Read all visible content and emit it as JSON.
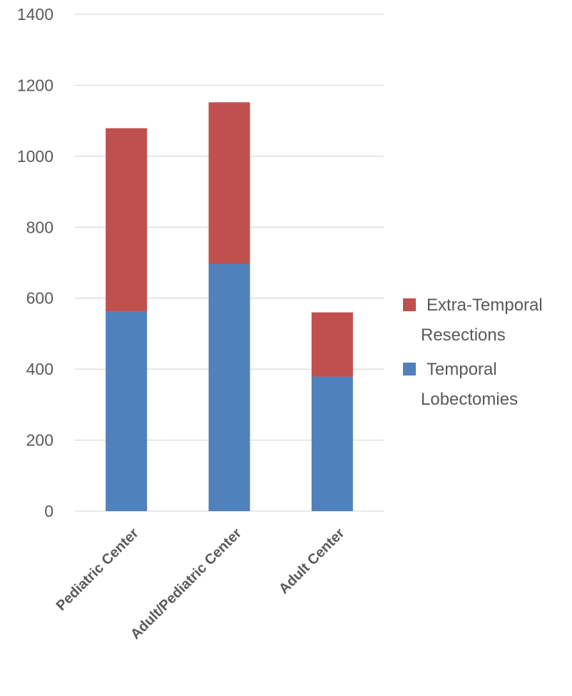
{
  "chart_data": {
    "type": "bar",
    "stacked": true,
    "categories": [
      "Pediatric Center",
      "Adult/Pediatric Center",
      "Adult Center"
    ],
    "series": [
      {
        "name": "Temporal Lobectomies",
        "values": [
          562,
          697,
          379
        ],
        "color": "#4f81bd"
      },
      {
        "name": "Extra-Temporal Resections",
        "values": [
          517,
          455,
          181
        ],
        "color": "#c0504d"
      }
    ],
    "ylim": [
      0,
      1400
    ],
    "yticks": [
      0,
      200,
      400,
      600,
      800,
      1000,
      1200,
      1400
    ],
    "grid": true,
    "legend_position": "right",
    "legend": [
      {
        "lines": [
          "Extra-Temporal",
          "Resections"
        ],
        "color": "#c0504d"
      },
      {
        "lines": [
          "Temporal",
          "Lobectomies"
        ],
        "color": "#4f81bd"
      }
    ]
  }
}
